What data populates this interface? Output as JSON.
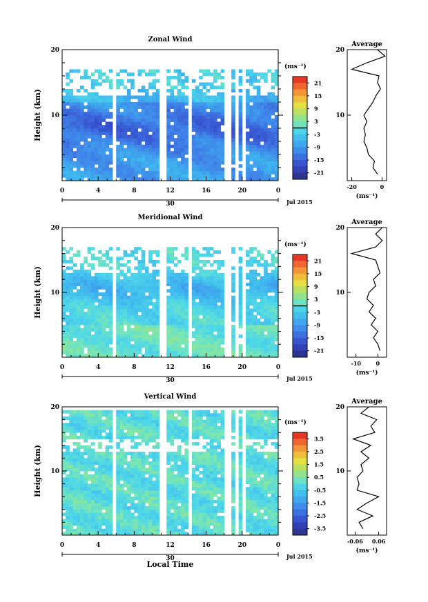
{
  "figure": {
    "xlabel": "Local Time",
    "date_label": "Jul 2015",
    "day_label": "30",
    "ylabel": "Height (km)",
    "unit_label": "(ms⁻¹)",
    "avg_title": "Average"
  },
  "chart_data": [
    {
      "type": "heatmap",
      "title": "Zonal Wind",
      "xlabel": "Local Time",
      "ylabel": "Height (km)",
      "x_ticks": [
        "0",
        "4",
        "8",
        "12",
        "16",
        "20",
        "0"
      ],
      "x_range": [
        0,
        24
      ],
      "y_ticks": [
        "10",
        "20"
      ],
      "y_range": [
        0,
        20
      ],
      "colorbar": {
        "label": "(ms⁻¹)",
        "ticks": [
          "21",
          "15",
          "9",
          "3",
          "-3",
          "-9",
          "-15",
          "-21"
        ],
        "range": [
          -24,
          24
        ],
        "zero_line": true
      },
      "field_summary": "Mostly negative (easterly) winds, strongest (~-15 to -20 ms⁻¹) near 5-11 km; weaker above; data gaps above ~17 km.",
      "profile": {
        "title": "Average",
        "xlabel": "(ms⁻¹)",
        "x_ticks": [
          "-20",
          "0"
        ],
        "x_range": [
          -23,
          3
        ],
        "heights": [
          1,
          2,
          3,
          4,
          5,
          6,
          7,
          8,
          9,
          10,
          11,
          12,
          13,
          14,
          15,
          16,
          17,
          18,
          19,
          20
        ],
        "values": [
          -3,
          -6,
          -5,
          -9,
          -10,
          -12,
          -11,
          -12,
          -10,
          -12,
          -9,
          -6,
          -4,
          -1,
          -3,
          -2,
          -20,
          -10,
          2,
          -3
        ]
      }
    },
    {
      "type": "heatmap",
      "title": "Meridional Wind",
      "xlabel": "Local Time",
      "ylabel": "Height (km)",
      "x_ticks": [
        "0",
        "4",
        "8",
        "12",
        "16",
        "20",
        "0"
      ],
      "x_range": [
        0,
        24
      ],
      "y_ticks": [
        "10",
        "20"
      ],
      "y_range": [
        0,
        20
      ],
      "colorbar": {
        "label": "(ms⁻¹)",
        "ticks": [
          "21",
          "15",
          "9",
          "3",
          "-3",
          "-9",
          "-15",
          "-21"
        ],
        "range": [
          -24,
          24
        ],
        "zero_line": true
      },
      "field_summary": "Weak negative meridional winds between ~8-13 km; near-zero values below ~5 km; patchy data above ~16 km.",
      "profile": {
        "title": "Average",
        "xlabel": "(ms⁻¹)",
        "x_ticks": [
          "-10",
          "0"
        ],
        "x_range": [
          -14,
          4
        ],
        "heights": [
          1,
          2,
          3,
          4,
          5,
          6,
          7,
          8,
          9,
          10,
          11,
          12,
          13,
          14,
          15,
          16,
          17,
          18,
          19,
          20
        ],
        "values": [
          1,
          0,
          -2,
          0,
          -3,
          -1,
          -4,
          -2,
          -5,
          -4,
          -1,
          -2,
          1,
          0,
          -1,
          -12,
          -1,
          2,
          -1,
          2
        ]
      }
    },
    {
      "type": "heatmap",
      "title": "Vertical Wind",
      "xlabel": "Local Time",
      "ylabel": "Height (km)",
      "x_ticks": [
        "0",
        "4",
        "8",
        "12",
        "16",
        "20",
        "0"
      ],
      "x_range": [
        0,
        24
      ],
      "y_ticks": [
        "10",
        "20"
      ],
      "y_range": [
        0,
        20
      ],
      "colorbar": {
        "label": "(ms⁻¹)",
        "ticks": [
          "3.5",
          "2.5",
          "1.5",
          "0.5",
          "-0.5",
          "-1.5",
          "-2.5",
          "-3.5"
        ],
        "range": [
          -4,
          4
        ],
        "zero_line": false
      },
      "field_summary": "Small vertical velocities (roughly -0.5 to 0.5 ms⁻¹) throughout; sparse data near 13-15 km.",
      "profile": {
        "title": "Average",
        "xlabel": "(ms⁻¹)",
        "x_ticks": [
          "-0.06",
          "0.06"
        ],
        "x_range": [
          -0.1,
          0.1
        ],
        "heights": [
          1,
          2,
          3,
          4,
          5,
          6,
          7,
          8,
          9,
          10,
          11,
          12,
          13,
          14,
          15,
          16,
          17,
          18,
          19,
          20
        ],
        "values": [
          -0.02,
          -0.04,
          0.03,
          -0.05,
          0.0,
          0.06,
          -0.05,
          -0.04,
          -0.05,
          -0.02,
          -0.03,
          0.01,
          -0.03,
          0.02,
          -0.07,
          0.04,
          0.02,
          0.05,
          -0.03,
          0.01
        ]
      }
    }
  ]
}
